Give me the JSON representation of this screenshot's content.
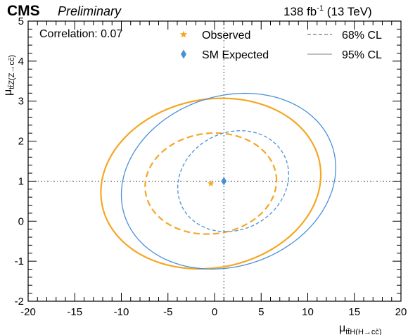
{
  "header": {
    "experiment": "CMS",
    "status": "Preliminary",
    "lumi_value": "138 fb",
    "lumi_exp": "-1",
    "energy": "(13 TeV)"
  },
  "annotation": "Correlation: 0.07",
  "chart_data": {
    "type": "contour",
    "xlabel": "μ",
    "xlabel_subscript": "tt̄H(H→cc̄)",
    "ylabel": "μ",
    "ylabel_subscript": "tt̄Z(Z→cc̄)",
    "xlim": [
      -20,
      20
    ],
    "ylim": [
      -2,
      5
    ],
    "xticks": [
      -20,
      -15,
      -10,
      -5,
      0,
      5,
      10,
      15,
      20
    ],
    "yticks": [
      -2,
      -1,
      0,
      1,
      2,
      3,
      4,
      5
    ],
    "reference_lines": {
      "x": 1,
      "y": 1
    },
    "observed": {
      "x": -0.4,
      "y": 0.94
    },
    "expected": {
      "x": 1.0,
      "y": 1.0
    },
    "legend": [
      {
        "label": "Observed",
        "marker": "star",
        "color": "#f5a623"
      },
      {
        "label": "SM Expected",
        "marker": "diamond",
        "color": "#4a90d9"
      },
      {
        "label": "68% CL",
        "line": "dashed",
        "color": "#8e8e8e"
      },
      {
        "label": "95% CL",
        "line": "solid",
        "color": "#aaaaaa"
      }
    ],
    "contours": [
      {
        "id": "obs-95",
        "style": "solid",
        "color": "#f5a623",
        "center": [
          -0.4,
          0.94
        ],
        "rx": 11.8,
        "ry": 2.12,
        "tilt": 0.22
      },
      {
        "id": "obs-68",
        "style": "dashed",
        "color": "#f5a623",
        "center": [
          -0.4,
          0.94
        ],
        "rx": 7.05,
        "ry": 1.26,
        "tilt": 0.13
      },
      {
        "id": "exp-95",
        "style": "solid",
        "color": "#4a90d9",
        "center": [
          1.5,
          1.0
        ],
        "rx": 11.5,
        "ry": 2.17,
        "tilt": 0.33
      },
      {
        "id": "exp-68",
        "style": "dashed",
        "color": "#4a90d9",
        "center": [
          2.0,
          1.0
        ],
        "rx": 5.95,
        "ry": 1.25,
        "tilt": 0.28
      }
    ],
    "colors": {
      "observed": "#f5a623",
      "expected": "#4a90d9",
      "legend_line": "#8e8e8e",
      "legend_line_solid": "#aaaaaa"
    }
  }
}
